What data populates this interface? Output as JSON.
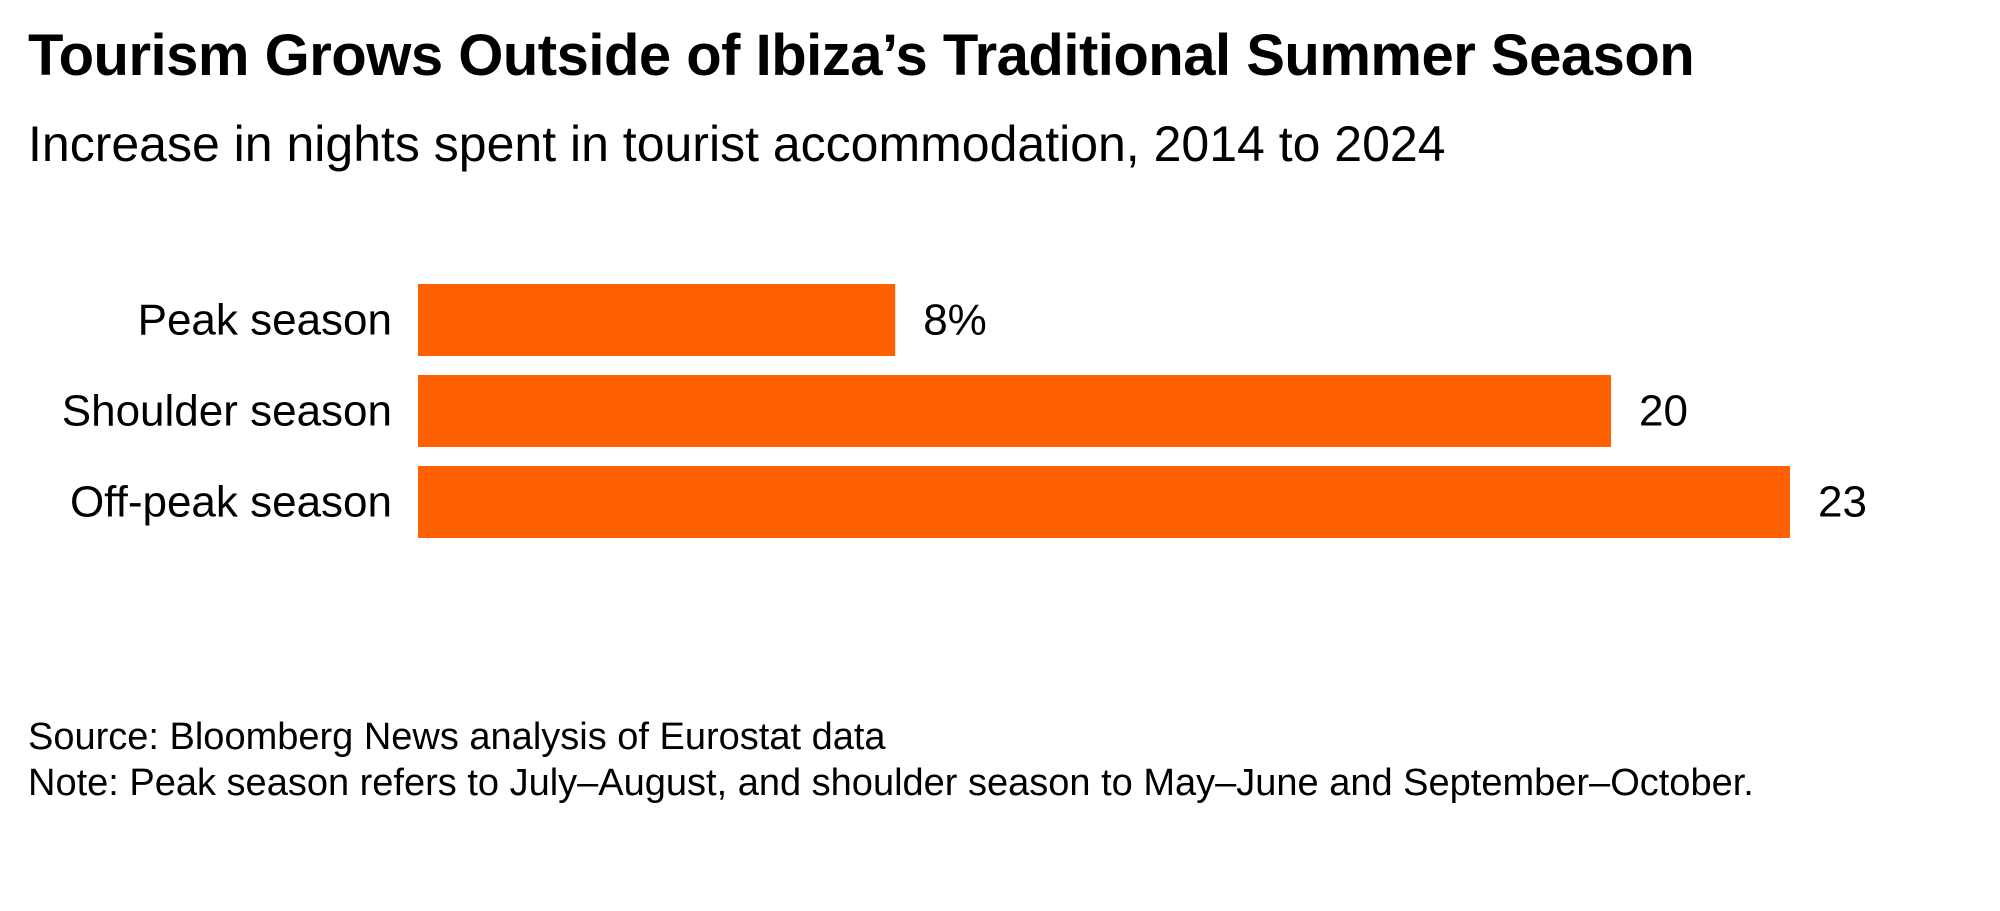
{
  "header": {
    "title": "Tourism Grows Outside of Ibiza’s Traditional Summer Season",
    "subtitle": "Increase in nights spent in tourist accommodation, 2014 to 2024"
  },
  "chart_data": {
    "type": "bar",
    "orientation": "horizontal",
    "categories": [
      "Peak season",
      "Shoulder season",
      "Off-peak season"
    ],
    "values": [
      8,
      20,
      23
    ],
    "value_labels": [
      "8%",
      "20",
      "23"
    ],
    "unit": "%",
    "xlim": [
      0,
      23
    ],
    "bar_color": "#ff6100",
    "grid": false,
    "legend": "none"
  },
  "footer": {
    "source": "Source: Bloomberg News analysis of Eurostat data",
    "note": "Note: Peak season refers to July–August, and shoulder season to May–June and September–October."
  }
}
